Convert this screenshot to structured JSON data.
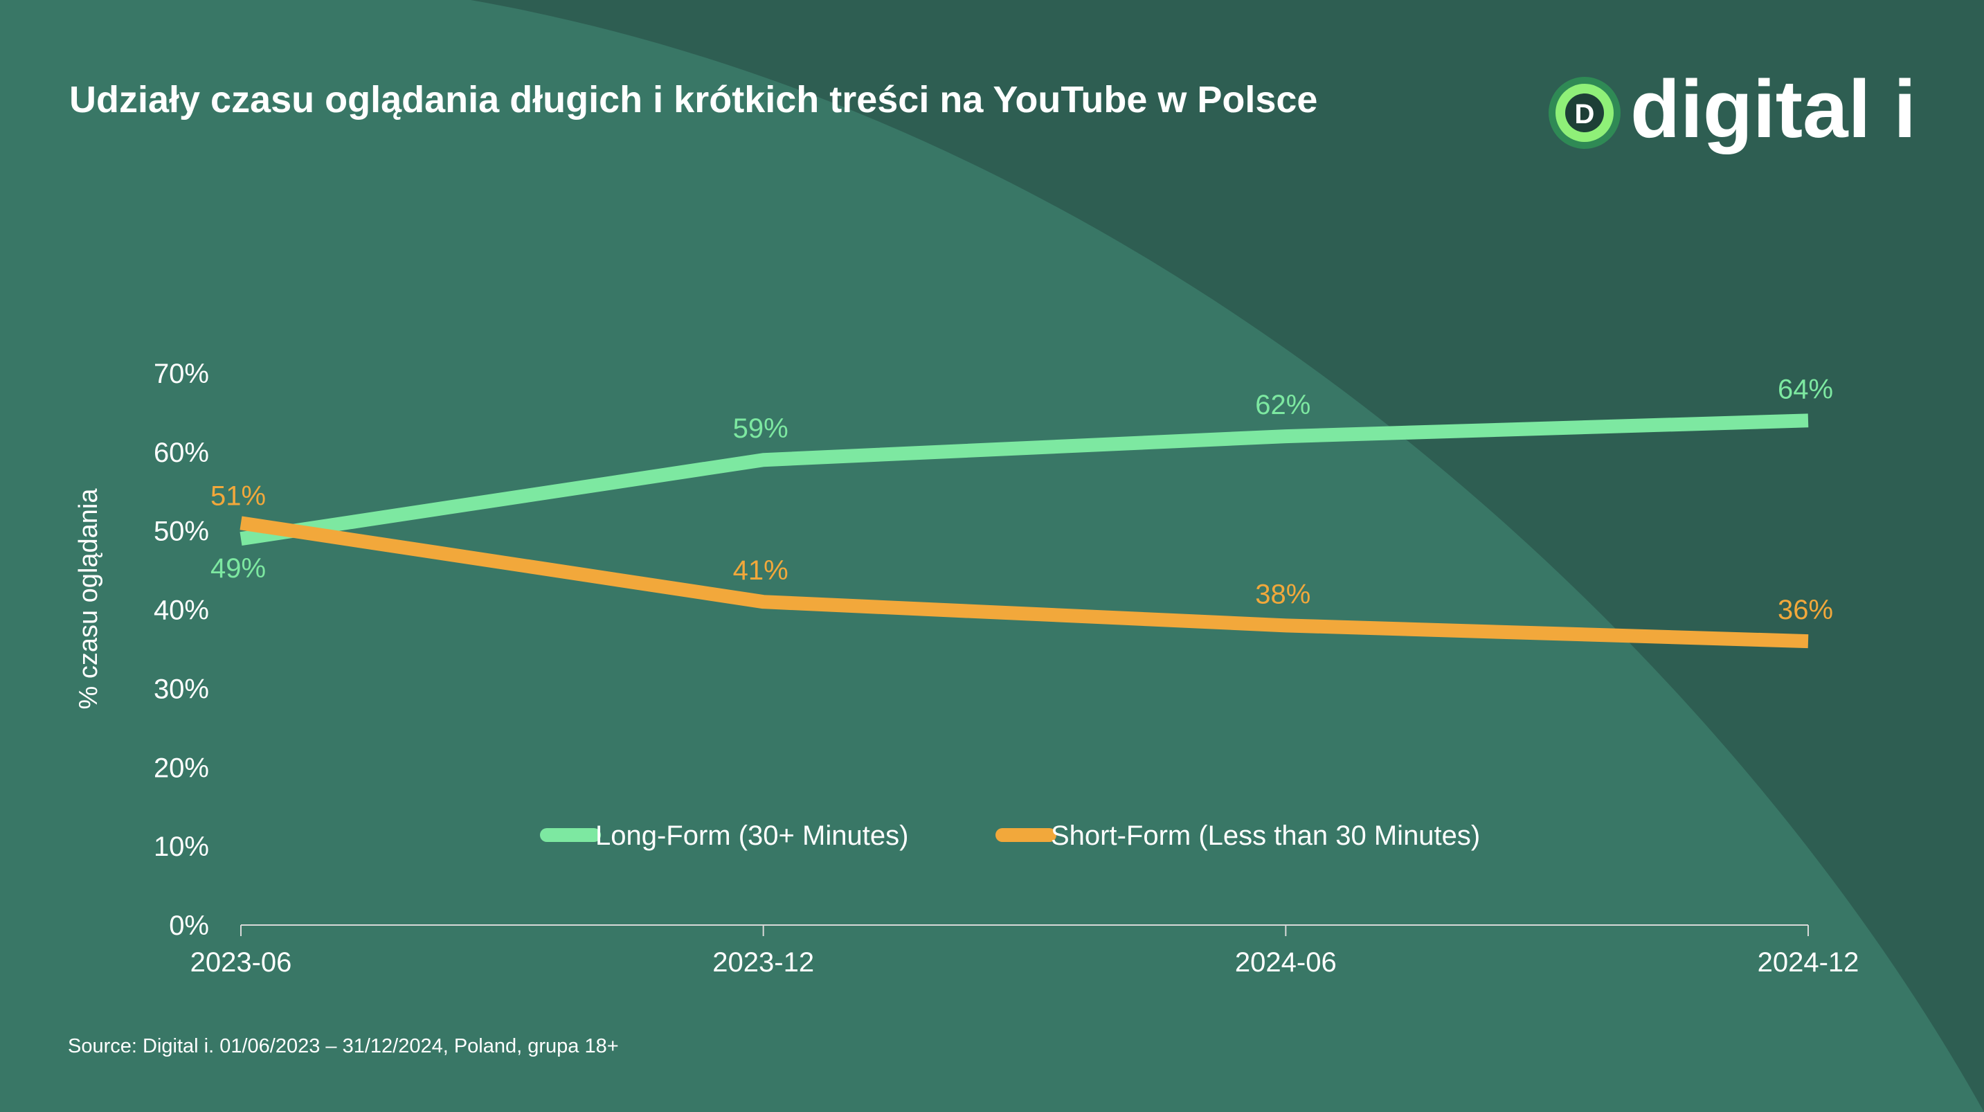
{
  "title": "Udziały czasu oglądania długich i krótkich treści na YouTube w Polsce",
  "logo": {
    "text": "digital i",
    "mark_letter": "D"
  },
  "source": "Source: Digital i. 01/06/2023 – 31/12/2024, Poland,  grupa 18+",
  "colors": {
    "background_dark": "#2e5e52",
    "background_light": "#397766",
    "long_form": "#7de8a1",
    "short_form": "#f2a83b",
    "text": "#ffffff",
    "logo_ring": "#8ff078"
  },
  "chart_data": {
    "type": "line",
    "categories": [
      "2023-06",
      "2023-12",
      "2024-06",
      "2024-12"
    ],
    "series": [
      {
        "name": "Long-Form (30+ Minutes)",
        "values": [
          49,
          59,
          62,
          64
        ],
        "labels": [
          "49%",
          "59%",
          "62%",
          "64%"
        ],
        "color": "#7de8a1"
      },
      {
        "name": "Short-Form (Less than 30 Minutes)",
        "values": [
          51,
          41,
          38,
          36
        ],
        "labels": [
          "51%",
          "41%",
          "38%",
          "36%"
        ],
        "color": "#f2a83b"
      }
    ],
    "ylabel": "% czasu oglądania",
    "yticks": [
      "0%",
      "10%",
      "20%",
      "30%",
      "40%",
      "50%",
      "60%",
      "70%"
    ],
    "ylim": [
      0,
      70
    ],
    "legend_position": "bottom-center inside plot",
    "grid": false
  }
}
